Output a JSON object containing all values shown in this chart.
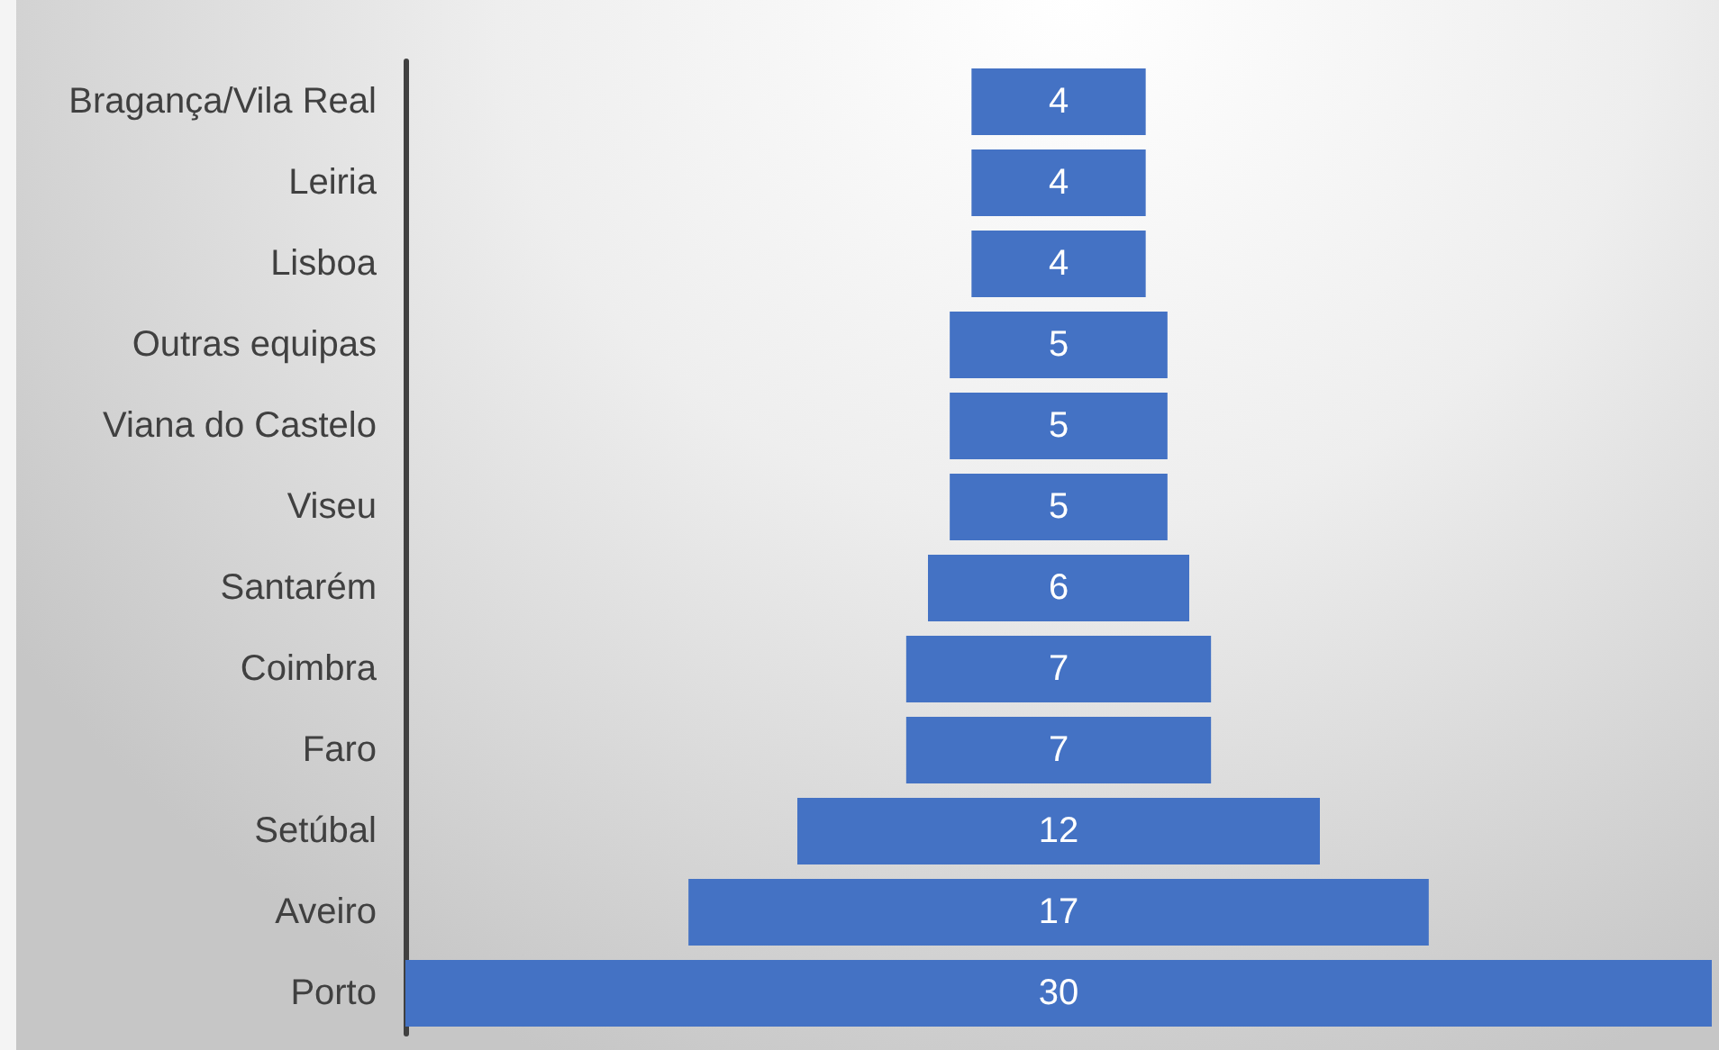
{
  "chart_data": {
    "type": "other",
    "categories": [
      "Bragança/Vila Real",
      "Leiria",
      "Lisboa",
      "Outras equipas",
      "Viana do Castelo",
      "Viseu",
      "Santarém",
      "Coimbra",
      "Faro",
      "Setúbal",
      "Aveiro",
      "Porto"
    ],
    "values": [
      4,
      4,
      4,
      5,
      5,
      5,
      6,
      7,
      7,
      12,
      17,
      30
    ],
    "color": "#4472c4",
    "data_labels": true
  }
}
